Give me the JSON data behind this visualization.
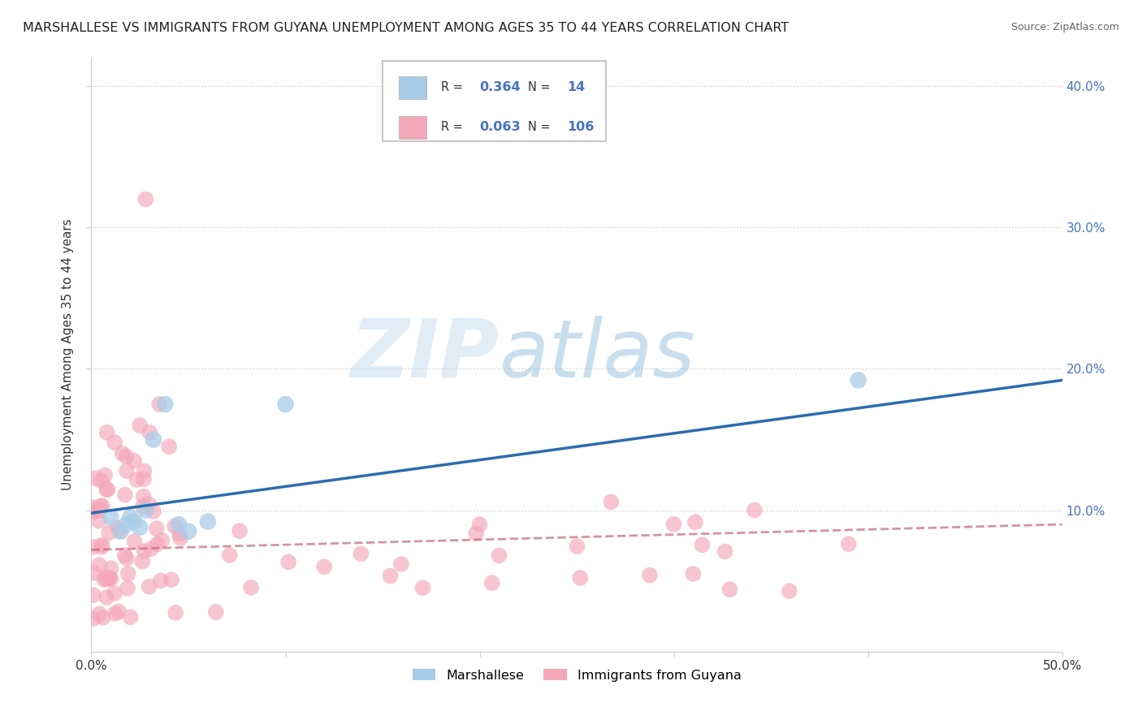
{
  "title": "MARSHALLESE VS IMMIGRANTS FROM GUYANA UNEMPLOYMENT AMONG AGES 35 TO 44 YEARS CORRELATION CHART",
  "source": "Source: ZipAtlas.com",
  "ylabel": "Unemployment Among Ages 35 to 44 years",
  "xlim": [
    0.0,
    0.5
  ],
  "ylim": [
    0.0,
    0.42
  ],
  "xticks": [
    0.0,
    0.1,
    0.2,
    0.3,
    0.4,
    0.5
  ],
  "xticklabels": [
    "0.0%",
    "",
    "",
    "",
    "",
    "50.0%"
  ],
  "yticks": [
    0.1,
    0.2,
    0.3,
    0.4
  ],
  "yticklabels": [
    "10.0%",
    "20.0%",
    "30.0%",
    "40.0%"
  ],
  "watermark_zip": "ZIP",
  "watermark_atlas": "atlas",
  "blue_R": "0.364",
  "blue_N": "14",
  "pink_R": "0.063",
  "pink_N": "106",
  "blue_color": "#a8cce8",
  "pink_color": "#f4a7b9",
  "blue_line_color": "#2b6cb0",
  "pink_line_color": "#c0687a",
  "legend_label_blue": "Marshallese",
  "legend_label_pink": "Immigrants from Guyana",
  "background_color": "#ffffff",
  "grid_color": "#cccccc",
  "title_fontsize": 11.5,
  "axis_label_fontsize": 11,
  "tick_fontsize": 11,
  "blue_line_start_y": 0.098,
  "blue_line_end_y": 0.192,
  "pink_line_start_y": 0.072,
  "pink_line_end_y": 0.09
}
